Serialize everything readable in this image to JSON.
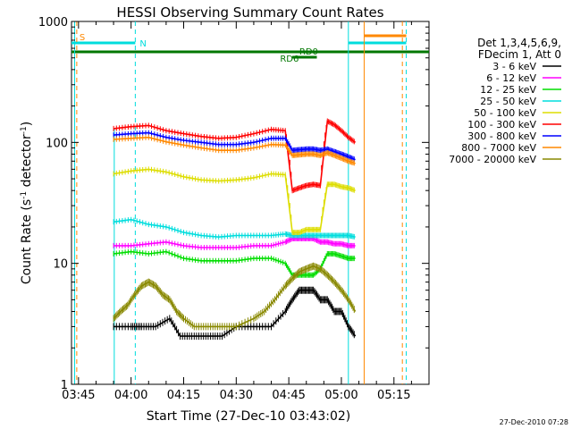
{
  "chart_data": {
    "type": "line",
    "title": "HESSI Observing Summary Count Rates",
    "xlabel": "Start Time (27-Dec-10 03:43:02)",
    "ylabel": "Count Rate (s",
    "ylabel_sup": "-1",
    "ylabel_tail": " detector",
    "ylabel_sup2": "-1",
    "ylabel_end": ")",
    "y_scale": "log",
    "ylim": [
      1,
      1000
    ],
    "xlim_minutes": [
      223,
      325
    ],
    "x_ticks": [
      {
        "label": "03:45",
        "min": 225
      },
      {
        "label": "04:00",
        "min": 240
      },
      {
        "label": "04:15",
        "min": 255
      },
      {
        "label": "04:30",
        "min": 270
      },
      {
        "label": "04:45",
        "min": 285
      },
      {
        "label": "05:00",
        "min": 300
      },
      {
        "label": "05:15",
        "min": 315
      }
    ],
    "y_ticks": [
      {
        "label": "1",
        "v": 1
      },
      {
        "label": "10",
        "v": 10
      },
      {
        "label": "100",
        "v": 100
      },
      {
        "label": "1000",
        "v": 1000
      }
    ],
    "legend_header": [
      "Det 1,3,4,5,6,9,",
      "FDecim 1, Att 0"
    ],
    "series": [
      {
        "name": "3 - 6 keV",
        "color": "#000000",
        "points": [
          [
            235,
            3
          ],
          [
            240,
            3
          ],
          [
            243,
            3
          ],
          [
            247,
            3
          ],
          [
            251,
            3.5
          ],
          [
            254,
            2.5
          ],
          [
            258,
            2.5
          ],
          [
            262,
            2.5
          ],
          [
            266,
            2.5
          ],
          [
            270,
            3
          ],
          [
            275,
            3
          ],
          [
            280,
            3
          ],
          [
            284,
            4
          ],
          [
            286,
            5
          ],
          [
            288,
            6
          ],
          [
            290,
            6
          ],
          [
            292,
            6
          ],
          [
            294,
            5
          ],
          [
            296,
            5
          ],
          [
            298,
            4
          ],
          [
            300,
            4
          ],
          [
            302,
            3
          ],
          [
            304,
            2.5
          ]
        ]
      },
      {
        "name": "6 - 12 keV",
        "color": "#ff00ff",
        "points": [
          [
            235,
            14
          ],
          [
            240,
            14
          ],
          [
            245,
            14.5
          ],
          [
            250,
            15
          ],
          [
            255,
            14
          ],
          [
            260,
            13.5
          ],
          [
            265,
            13.5
          ],
          [
            270,
            13.5
          ],
          [
            275,
            14
          ],
          [
            280,
            14
          ],
          [
            284,
            15
          ],
          [
            286,
            16
          ],
          [
            288,
            16
          ],
          [
            290,
            16
          ],
          [
            292,
            16
          ],
          [
            294,
            15
          ],
          [
            296,
            15
          ],
          [
            298,
            14.5
          ],
          [
            300,
            14.5
          ],
          [
            302,
            14
          ],
          [
            304,
            14
          ]
        ]
      },
      {
        "name": "12 - 25 keV",
        "color": "#00dd00",
        "points": [
          [
            235,
            12
          ],
          [
            240,
            12.5
          ],
          [
            245,
            12
          ],
          [
            250,
            12.5
          ],
          [
            255,
            11
          ],
          [
            260,
            10.5
          ],
          [
            265,
            10.5
          ],
          [
            270,
            10.5
          ],
          [
            275,
            11
          ],
          [
            280,
            11
          ],
          [
            284,
            10
          ],
          [
            286,
            8
          ],
          [
            288,
            8
          ],
          [
            290,
            8
          ],
          [
            292,
            8
          ],
          [
            294,
            9
          ],
          [
            296,
            12
          ],
          [
            298,
            12
          ],
          [
            300,
            11.5
          ],
          [
            302,
            11
          ],
          [
            304,
            11
          ]
        ]
      },
      {
        "name": "25 - 50 keV",
        "color": "#00dddd",
        "points": [
          [
            235,
            22
          ],
          [
            240,
            23
          ],
          [
            245,
            21
          ],
          [
            250,
            20
          ],
          [
            255,
            18
          ],
          [
            260,
            17
          ],
          [
            265,
            16.5
          ],
          [
            270,
            17
          ],
          [
            275,
            17
          ],
          [
            280,
            17
          ],
          [
            284,
            17.5
          ],
          [
            286,
            17
          ],
          [
            288,
            17
          ],
          [
            290,
            17
          ],
          [
            292,
            17
          ],
          [
            294,
            17
          ],
          [
            296,
            17
          ],
          [
            298,
            17
          ],
          [
            300,
            17
          ],
          [
            302,
            17
          ],
          [
            304,
            16.5
          ]
        ]
      },
      {
        "name": "50 - 100 keV",
        "color": "#dddd00",
        "points": [
          [
            235,
            55
          ],
          [
            240,
            58
          ],
          [
            245,
            60
          ],
          [
            250,
            57
          ],
          [
            255,
            52
          ],
          [
            260,
            49
          ],
          [
            265,
            48
          ],
          [
            270,
            49
          ],
          [
            275,
            51
          ],
          [
            280,
            55
          ],
          [
            284,
            54
          ],
          [
            286,
            18
          ],
          [
            288,
            18
          ],
          [
            290,
            19
          ],
          [
            292,
            19
          ],
          [
            294,
            19
          ],
          [
            296,
            45
          ],
          [
            298,
            45
          ],
          [
            300,
            43
          ],
          [
            302,
            42
          ],
          [
            304,
            40
          ]
        ]
      },
      {
        "name": "100 - 300 keV",
        "color": "#ff0000",
        "points": [
          [
            235,
            130
          ],
          [
            240,
            135
          ],
          [
            245,
            138
          ],
          [
            250,
            125
          ],
          [
            255,
            118
          ],
          [
            260,
            112
          ],
          [
            265,
            108
          ],
          [
            270,
            110
          ],
          [
            275,
            118
          ],
          [
            280,
            128
          ],
          [
            284,
            125
          ],
          [
            286,
            40
          ],
          [
            288,
            42
          ],
          [
            290,
            44
          ],
          [
            292,
            45
          ],
          [
            294,
            44
          ],
          [
            296,
            150
          ],
          [
            298,
            140
          ],
          [
            300,
            125
          ],
          [
            302,
            110
          ],
          [
            304,
            100
          ]
        ]
      },
      {
        "name": "300 - 800 keV",
        "color": "#0000ff",
        "points": [
          [
            235,
            115
          ],
          [
            240,
            118
          ],
          [
            245,
            120
          ],
          [
            250,
            110
          ],
          [
            255,
            104
          ],
          [
            260,
            100
          ],
          [
            265,
            96
          ],
          [
            270,
            96
          ],
          [
            275,
            100
          ],
          [
            280,
            108
          ],
          [
            284,
            108
          ],
          [
            286,
            86
          ],
          [
            288,
            87
          ],
          [
            290,
            88
          ],
          [
            292,
            88
          ],
          [
            294,
            86
          ],
          [
            296,
            88
          ],
          [
            298,
            84
          ],
          [
            300,
            80
          ],
          [
            302,
            76
          ],
          [
            304,
            72
          ]
        ]
      },
      {
        "name": "800 - 7000 keV",
        "color": "#ff8800",
        "points": [
          [
            235,
            106
          ],
          [
            240,
            108
          ],
          [
            245,
            110
          ],
          [
            250,
            101
          ],
          [
            255,
            95
          ],
          [
            260,
            90
          ],
          [
            265,
            86
          ],
          [
            270,
            86
          ],
          [
            275,
            90
          ],
          [
            280,
            96
          ],
          [
            284,
            95
          ],
          [
            286,
            78
          ],
          [
            288,
            79
          ],
          [
            290,
            80
          ],
          [
            292,
            80
          ],
          [
            294,
            78
          ],
          [
            296,
            82
          ],
          [
            298,
            78
          ],
          [
            300,
            74
          ],
          [
            302,
            70
          ],
          [
            304,
            67
          ]
        ]
      },
      {
        "name": "7000 - 20000 keV",
        "color": "#888800",
        "points": [
          [
            235,
            3.5
          ],
          [
            237,
            4
          ],
          [
            239,
            4.5
          ],
          [
            241,
            5.5
          ],
          [
            243,
            6.5
          ],
          [
            245,
            7
          ],
          [
            247,
            6.5
          ],
          [
            249,
            5.5
          ],
          [
            251,
            5
          ],
          [
            253,
            4
          ],
          [
            255,
            3.5
          ],
          [
            258,
            3
          ],
          [
            262,
            3
          ],
          [
            266,
            3
          ],
          [
            270,
            3
          ],
          [
            275,
            3.5
          ],
          [
            278,
            4
          ],
          [
            281,
            5
          ],
          [
            284,
            6.5
          ],
          [
            286,
            7.5
          ],
          [
            288,
            8.5
          ],
          [
            290,
            9
          ],
          [
            292,
            9.5
          ],
          [
            294,
            9
          ],
          [
            296,
            8
          ],
          [
            298,
            7
          ],
          [
            300,
            6
          ],
          [
            302,
            5
          ],
          [
            304,
            4
          ]
        ]
      }
    ],
    "annotations": [
      {
        "label": "S",
        "color": "#ff8800",
        "min": 224.5
      },
      {
        "label": "N",
        "color": "#00dddd",
        "min": 241.2
      },
      {
        "label": "RD0",
        "color": "#007700"
      },
      {
        "label": "RD6",
        "color": "#007700"
      }
    ],
    "footer_stamp": "27-Dec-2010 07:28"
  }
}
